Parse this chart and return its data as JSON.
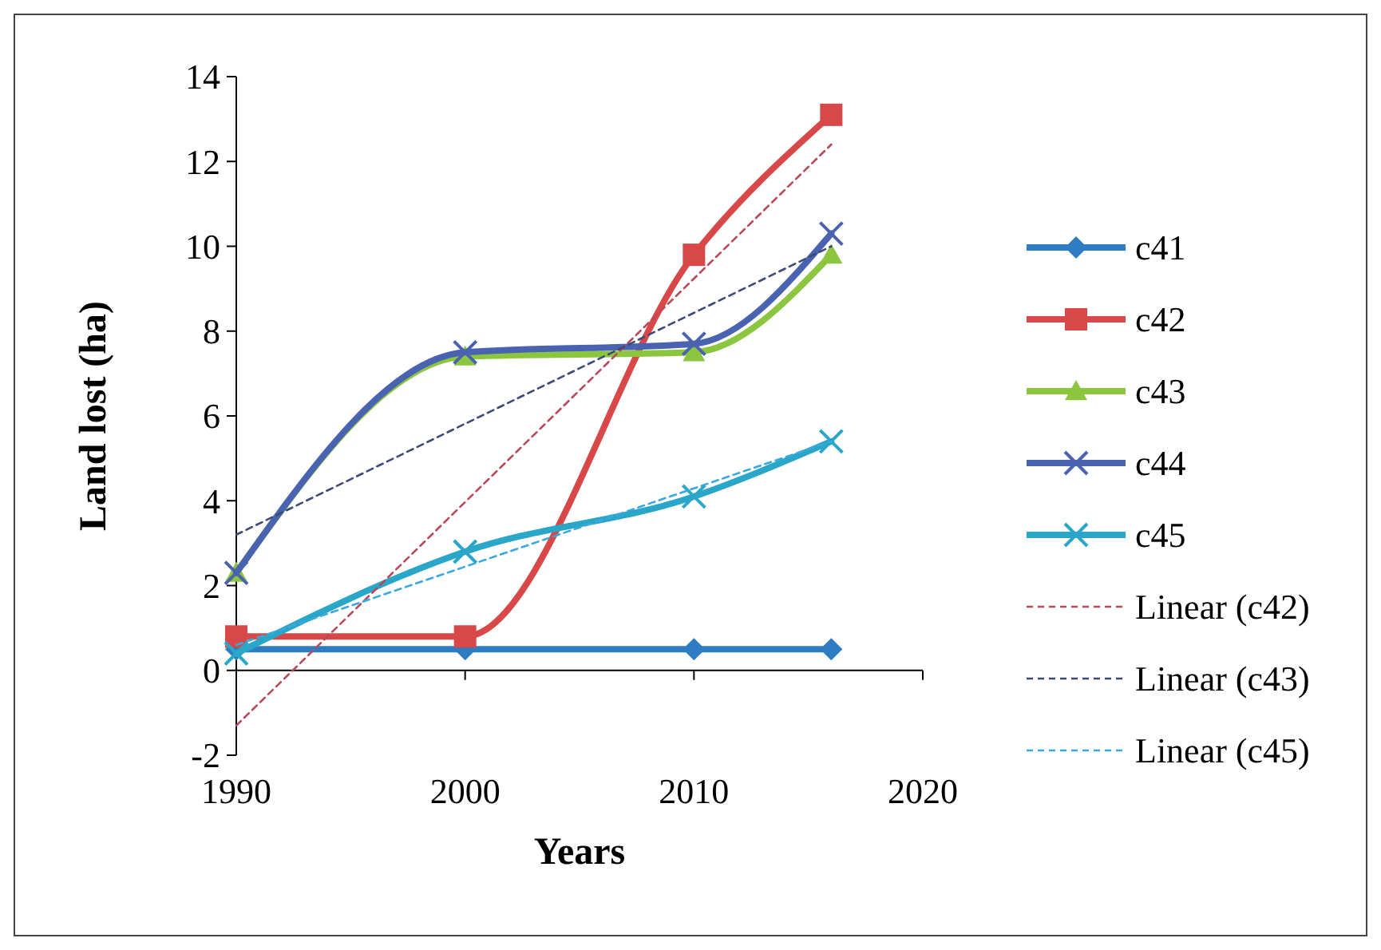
{
  "chart_data": {
    "type": "line",
    "xlabel": "Years",
    "ylabel": "Land lost (ha)",
    "xlim": [
      1990,
      2020
    ],
    "xticks": [
      1990,
      2000,
      2010,
      2020
    ],
    "ylim": [
      -2,
      14
    ],
    "yticks": [
      -2,
      0,
      2,
      4,
      6,
      8,
      10,
      12,
      14
    ],
    "legend": "right",
    "line_style": "solid",
    "series": [
      {
        "name": "c41",
        "color": "#2e7dc2",
        "marker": "diamond",
        "x": [
          1990,
          2000,
          2010,
          2016
        ],
        "values": [
          0.5,
          0.5,
          0.5,
          0.5
        ]
      },
      {
        "name": "c42",
        "color": "#d94848",
        "marker": "square",
        "x": [
          1990,
          2000,
          2010,
          2016
        ],
        "values": [
          0.8,
          0.8,
          9.8,
          13.1
        ]
      },
      {
        "name": "c43",
        "color": "#8cc63f",
        "marker": "triangle",
        "x": [
          1990,
          2000,
          2010,
          2016
        ],
        "values": [
          2.3,
          7.4,
          7.5,
          9.8
        ]
      },
      {
        "name": "c44",
        "color": "#4a63b0",
        "marker": "cross",
        "x": [
          1990,
          2000,
          2010,
          2016
        ],
        "values": [
          2.3,
          7.5,
          7.7,
          10.3
        ]
      },
      {
        "name": "c45",
        "color": "#2aa6c8",
        "marker": "cross",
        "x": [
          1990,
          2000,
          2010,
          2016
        ],
        "values": [
          0.4,
          2.8,
          4.1,
          5.4
        ]
      },
      {
        "name": "Linear (c42)",
        "color": "#b8485a",
        "marker": "none",
        "line_style": "dashed",
        "x": [
          1990,
          2016
        ],
        "values": [
          -1.3,
          12.4
        ]
      },
      {
        "name": "Linear (c43)",
        "color": "#3c4a78",
        "marker": "none",
        "line_style": "dashed",
        "x": [
          1990,
          2016
        ],
        "values": [
          3.2,
          10.0
        ]
      },
      {
        "name": "Linear (c45)",
        "color": "#3aa8e0",
        "marker": "none",
        "line_style": "dashed",
        "x": [
          1990,
          2016
        ],
        "values": [
          0.6,
          5.4
        ]
      }
    ]
  }
}
